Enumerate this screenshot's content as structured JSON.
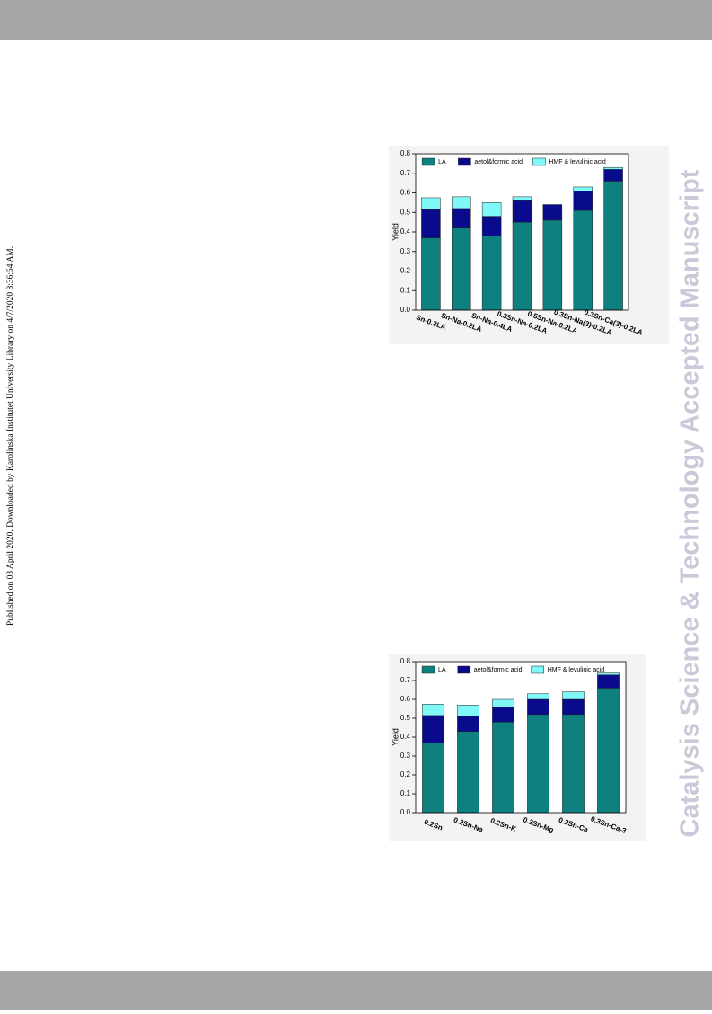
{
  "side_note": "Published on 03 April 2020. Downloaded by Karolinska Institutet University Library on 4/7/2020 8:36:54 AM.",
  "watermark": "Catalysis Science & Technology Accepted Manuscript",
  "chart_data": [
    {
      "type": "bar",
      "stacked": true,
      "y_label": "Yield",
      "categories": [
        "Sn-0.2LA",
        "Sn-Na-0.2LA",
        "Sn-Na-0.4LA",
        "0.3Sn-Na-0.2LA",
        "0.5Sn-Na-0.2LA",
        "0.3Sn-Na(3)-0.2LA",
        "0.3Sn-Ca(3)-0.2LA"
      ],
      "series": [
        {
          "name": "LA",
          "color": "#0e8080",
          "values": [
            0.37,
            0.42,
            0.38,
            0.45,
            0.46,
            0.51,
            0.66
          ]
        },
        {
          "name": "aetol&formic acid",
          "color": "#0a0a8c",
          "values": [
            0.145,
            0.1,
            0.1,
            0.11,
            0.08,
            0.1,
            0.06
          ]
        },
        {
          "name": "HMF & levulinic acid",
          "color": "#80f8f8",
          "values": [
            0.06,
            0.06,
            0.07,
            0.02,
            0,
            0.02,
            0.01
          ]
        }
      ],
      "ylim": [
        0,
        0.8
      ],
      "yticks": [
        {
          "value": 0,
          "label": "0.0"
        },
        0.1,
        0.2,
        0.3,
        0.4,
        0.5,
        0.6,
        0.7,
        0.8
      ]
    },
    {
      "type": "bar",
      "stacked": true,
      "y_label": "Yield",
      "categories": [
        "0.2Sn",
        "0.2Sn-Na",
        "0.2Sn-K",
        "0.2Sn-Mg",
        "0.2Sn-Ca",
        "0.3Sn-Ca-3"
      ],
      "series": [
        {
          "name": "LA",
          "color": "#0e8080",
          "values": [
            0.37,
            0.43,
            0.48,
            0.52,
            0.52,
            0.66
          ]
        },
        {
          "name": "aetol&formic acid",
          "color": "#0a0a8c",
          "values": [
            0.145,
            0.08,
            0.08,
            0.08,
            0.08,
            0.07
          ]
        },
        {
          "name": "HMF & levulinic acid",
          "color": "#80f8f8",
          "values": [
            0.06,
            0.06,
            0.04,
            0.03,
            0.04,
            0.01
          ]
        }
      ],
      "ylim": [
        0,
        0.8
      ],
      "yticks": [
        {
          "value": 0,
          "label": "0.0"
        },
        0.1,
        0.2,
        0.3,
        0.4,
        0.5,
        0.6,
        0.7,
        0.8
      ]
    }
  ]
}
